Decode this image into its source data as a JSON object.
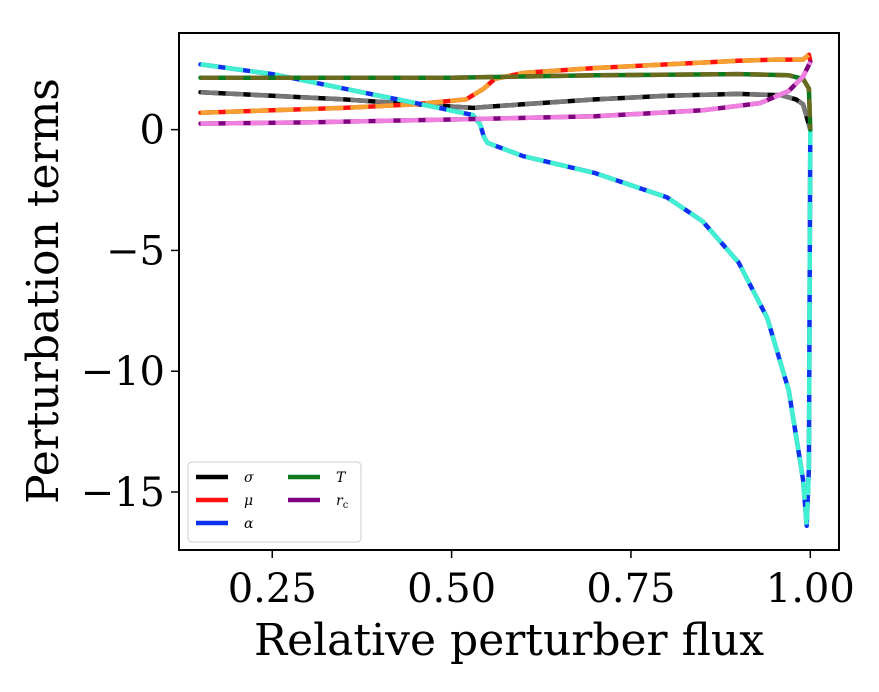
{
  "chart_data": {
    "type": "line",
    "xlabel": "Relative perturber flux",
    "ylabel": "Perturbation terms",
    "xlim": [
      0.12,
      1.04
    ],
    "ylim": [
      -17.4,
      4.0
    ],
    "xticks": [
      {
        "value": 0.25,
        "label": "0.25"
      },
      {
        "value": 0.5,
        "label": "0.50"
      },
      {
        "value": 0.75,
        "label": "0.75"
      },
      {
        "value": 1.0,
        "label": "1.00"
      }
    ],
    "yticks": [
      {
        "value": 0,
        "label": "0"
      },
      {
        "value": -5,
        "label": "−5"
      },
      {
        "value": -10,
        "label": "−10"
      },
      {
        "value": -15,
        "label": "−15"
      }
    ],
    "grid": false,
    "legend": {
      "placement": "lower-left",
      "columns": 2
    },
    "series": [
      {
        "name": "σ",
        "color": "#000000",
        "overlay_color": "#777777",
        "x": [
          0.15,
          0.25,
          0.35,
          0.45,
          0.53,
          0.55,
          0.6,
          0.7,
          0.8,
          0.9,
          0.96,
          0.98,
          0.99,
          1.0
        ],
        "y": [
          1.55,
          1.4,
          1.25,
          1.05,
          0.9,
          0.95,
          1.05,
          1.25,
          1.4,
          1.48,
          1.42,
          1.25,
          1.05,
          0.0
        ]
      },
      {
        "name": "μ",
        "color": "#ff1010",
        "overlay_color": "#f5a030",
        "x": [
          0.15,
          0.25,
          0.35,
          0.45,
          0.52,
          0.545,
          0.56,
          0.6,
          0.7,
          0.8,
          0.9,
          0.95,
          0.99,
          0.998,
          1.0
        ],
        "y": [
          0.7,
          0.8,
          0.9,
          1.05,
          1.25,
          1.7,
          2.1,
          2.35,
          2.55,
          2.7,
          2.85,
          2.9,
          2.9,
          3.1,
          2.85
        ]
      },
      {
        "name": "α",
        "color": "#1030f0",
        "overlay_color": "#40f0d0",
        "x": [
          0.15,
          0.25,
          0.35,
          0.45,
          0.53,
          0.54,
          0.545,
          0.55,
          0.6,
          0.7,
          0.8,
          0.85,
          0.9,
          0.94,
          0.97,
          0.99,
          0.995,
          0.998,
          1.0
        ],
        "y": [
          2.7,
          2.3,
          1.7,
          1.1,
          0.6,
          0.2,
          -0.3,
          -0.55,
          -1.1,
          -1.8,
          -2.8,
          -3.8,
          -5.5,
          -7.8,
          -10.8,
          -14.5,
          -16.4,
          -14.0,
          0.0
        ]
      },
      {
        "name": "T",
        "color": "#0d7a1e",
        "overlay_color": "#6b6b20",
        "x": [
          0.15,
          0.3,
          0.5,
          0.7,
          0.9,
          0.97,
          0.99,
          0.998,
          1.0
        ],
        "y": [
          2.15,
          2.15,
          2.15,
          2.25,
          2.3,
          2.25,
          2.1,
          1.7,
          0.0
        ]
      },
      {
        "name": "r_c",
        "label_main": "r",
        "label_sub": "c",
        "color": "#800080",
        "overlay_color": "#f080e0",
        "x": [
          0.15,
          0.3,
          0.5,
          0.7,
          0.85,
          0.93,
          0.97,
          0.99,
          1.0
        ],
        "y": [
          0.25,
          0.3,
          0.42,
          0.55,
          0.8,
          1.1,
          1.6,
          2.2,
          2.8
        ]
      }
    ]
  }
}
